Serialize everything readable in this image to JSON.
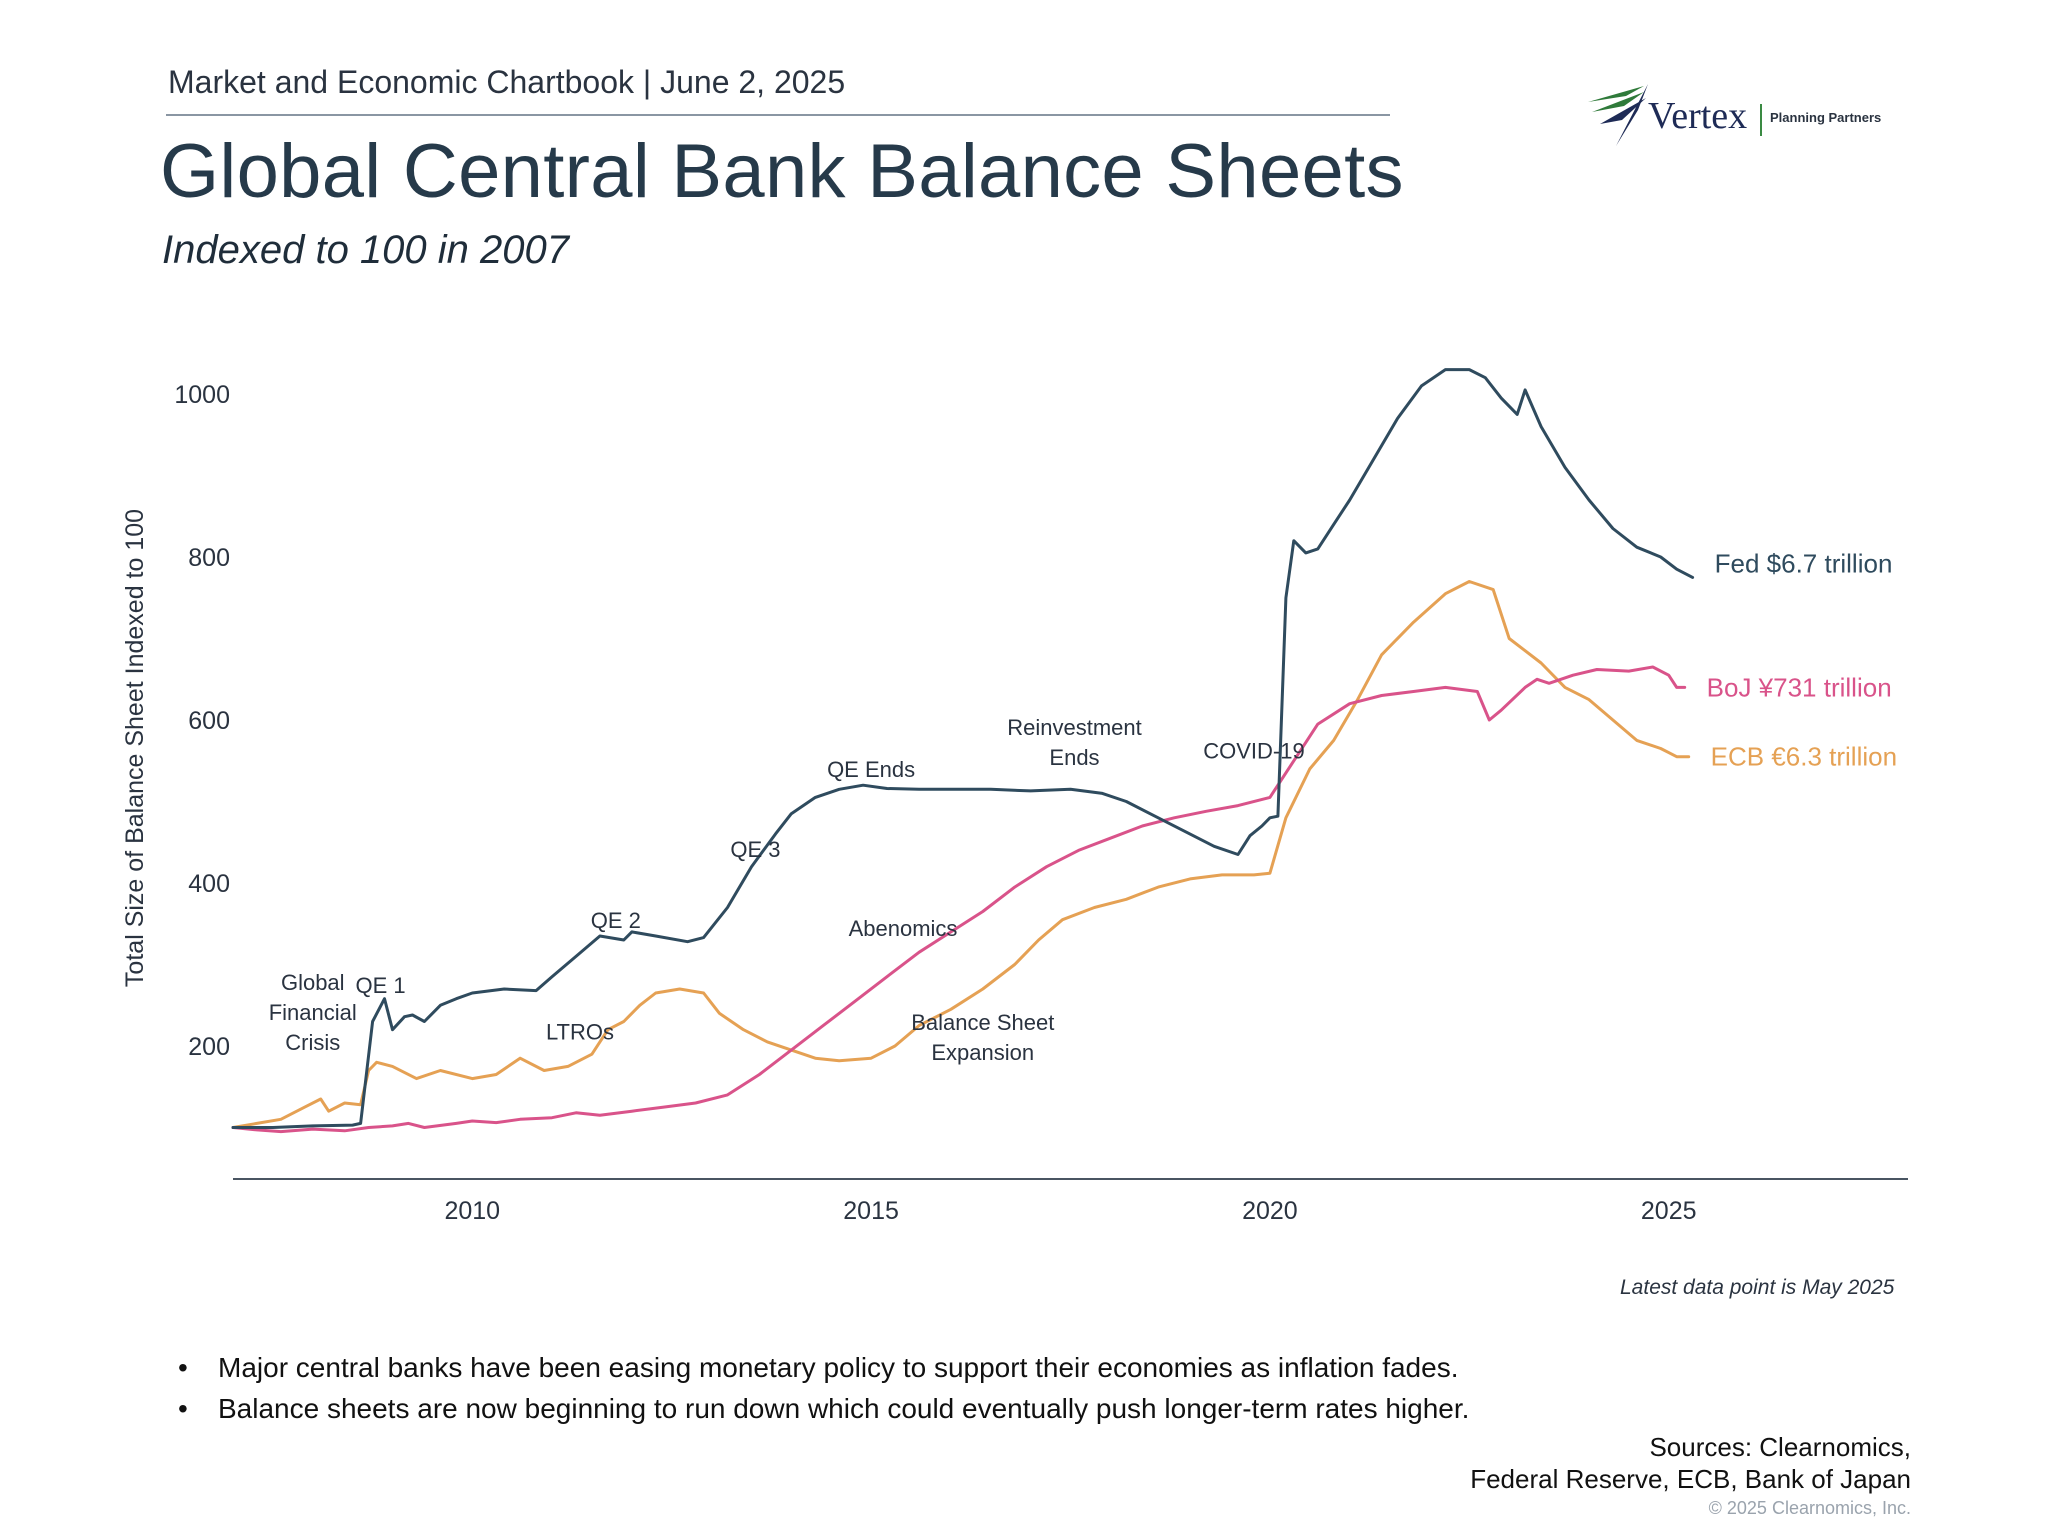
{
  "header": {
    "chartbook": "Market and Economic Chartbook | June 2, 2025",
    "title": "Global Central Bank Balance Sheets",
    "subtitle": "Indexed to 100 in 2007"
  },
  "logo": {
    "name": "Vertex",
    "tagline": "Planning Partners"
  },
  "colors": {
    "fed": "#2f4b5e",
    "boj": "#d9538a",
    "ecb": "#e5a154",
    "axis": "#4a5562",
    "text": "#2a3340"
  },
  "chart_data": {
    "type": "line",
    "title": "Global Central Bank Balance Sheets",
    "subtitle": "Indexed to 100 in 2007",
    "xlabel": "",
    "ylabel": "Total Size of Balance Sheet Indexed to 100",
    "xlim": [
      2007,
      2028
    ],
    "ylim": [
      30,
      1060
    ],
    "xticks": [
      2010,
      2015,
      2020,
      2025
    ],
    "xtick_labels": [
      "2010",
      "2015",
      "2020",
      "2025"
    ],
    "yticks": [
      200,
      400,
      600,
      800,
      1000
    ],
    "ytick_labels": [
      "200",
      "400",
      "600",
      "800",
      "1000"
    ],
    "grid": false,
    "legend": "inline labels at line ends (right)",
    "series": [
      {
        "name": "Fed",
        "label": "Fed $6.7 trillion",
        "color": "#2f4b5e",
        "x": [
          2007,
          2007.5,
          2008,
          2008.5,
          2008.6,
          2008.75,
          2008.9,
          2009,
          2009.15,
          2009.25,
          2009.4,
          2009.6,
          2009.8,
          2010,
          2010.4,
          2010.8,
          2011,
          2011.3,
          2011.6,
          2011.9,
          2012,
          2012.3,
          2012.7,
          2012.9,
          2013.2,
          2013.5,
          2013.8,
          2014,
          2014.3,
          2014.6,
          2014.9,
          2015.2,
          2015.6,
          2016,
          2016.5,
          2017,
          2017.5,
          2017.9,
          2018.2,
          2018.6,
          2019,
          2019.3,
          2019.6,
          2019.75,
          2019.9,
          2020,
          2020.1,
          2020.2,
          2020.3,
          2020.45,
          2020.6,
          2020.8,
          2021,
          2021.3,
          2021.6,
          2021.9,
          2022.2,
          2022.5,
          2022.7,
          2022.9,
          2023.1,
          2023.2,
          2023.4,
          2023.7,
          2024,
          2024.3,
          2024.6,
          2024.9,
          2025.1,
          2025.3
        ],
        "y": [
          100,
          100,
          102,
          103,
          105,
          230,
          258,
          220,
          236,
          238,
          230,
          250,
          258,
          265,
          270,
          268,
          285,
          310,
          335,
          330,
          340,
          335,
          328,
          333,
          370,
          420,
          460,
          485,
          505,
          515,
          520,
          516,
          515,
          515,
          515,
          513,
          515,
          510,
          500,
          480,
          460,
          445,
          435,
          458,
          470,
          480,
          482,
          750,
          820,
          805,
          810,
          840,
          870,
          920,
          970,
          1010,
          1030,
          1030,
          1020,
          995,
          975,
          1005,
          960,
          910,
          870,
          835,
          812,
          800,
          785,
          775
        ]
      },
      {
        "name": "BoJ",
        "label": "BoJ ¥731 trillion",
        "color": "#d9538a",
        "x": [
          2007,
          2007.3,
          2007.6,
          2008,
          2008.4,
          2008.7,
          2009,
          2009.2,
          2009.4,
          2009.8,
          2010,
          2010.3,
          2010.6,
          2011,
          2011.3,
          2011.6,
          2012,
          2012.4,
          2012.8,
          2013.2,
          2013.6,
          2014,
          2014.4,
          2014.8,
          2015.2,
          2015.6,
          2016,
          2016.4,
          2016.8,
          2017.2,
          2017.6,
          2018,
          2018.4,
          2018.8,
          2019.2,
          2019.6,
          2020,
          2020.3,
          2020.6,
          2021,
          2021.4,
          2021.8,
          2022.2,
          2022.6,
          2022.75,
          2022.9,
          2023.2,
          2023.35,
          2023.5,
          2023.8,
          2024.1,
          2024.5,
          2024.8,
          2025,
          2025.1,
          2025.2
        ],
        "y": [
          100,
          97,
          95,
          98,
          96,
          100,
          102,
          105,
          100,
          105,
          108,
          106,
          110,
          112,
          118,
          115,
          120,
          125,
          130,
          140,
          165,
          195,
          225,
          255,
          285,
          315,
          340,
          365,
          395,
          420,
          440,
          455,
          470,
          480,
          488,
          495,
          505,
          550,
          595,
          620,
          630,
          635,
          640,
          635,
          600,
          612,
          640,
          650,
          645,
          655,
          662,
          660,
          665,
          655,
          640,
          640
        ]
      },
      {
        "name": "ECB",
        "label": "ECB €6.3 trillion",
        "color": "#e5a154",
        "x": [
          2007,
          2007.3,
          2007.6,
          2007.9,
          2008.1,
          2008.2,
          2008.4,
          2008.6,
          2008.7,
          2008.8,
          2009,
          2009.3,
          2009.6,
          2010,
          2010.3,
          2010.6,
          2010.9,
          2011.2,
          2011.5,
          2011.7,
          2011.9,
          2012.1,
          2012.3,
          2012.6,
          2012.9,
          2013.1,
          2013.4,
          2013.7,
          2014,
          2014.3,
          2014.6,
          2015,
          2015.3,
          2015.6,
          2016,
          2016.4,
          2016.8,
          2017.1,
          2017.4,
          2017.8,
          2018.2,
          2018.6,
          2019,
          2019.4,
          2019.8,
          2020,
          2020.2,
          2020.5,
          2020.8,
          2021.1,
          2021.4,
          2021.8,
          2022.2,
          2022.5,
          2022.8,
          2023,
          2023.2,
          2023.4,
          2023.7,
          2024,
          2024.3,
          2024.6,
          2024.9,
          2025,
          2025.1,
          2025.25
        ],
        "y": [
          100,
          105,
          110,
          125,
          135,
          120,
          130,
          128,
          170,
          180,
          175,
          160,
          170,
          160,
          165,
          185,
          170,
          175,
          190,
          220,
          230,
          250,
          265,
          270,
          265,
          240,
          220,
          205,
          195,
          185,
          182,
          185,
          200,
          225,
          245,
          270,
          300,
          330,
          355,
          370,
          380,
          395,
          405,
          410,
          410,
          412,
          480,
          540,
          575,
          625,
          680,
          720,
          755,
          770,
          760,
          700,
          685,
          670,
          640,
          625,
          600,
          575,
          565,
          560,
          555,
          555
        ]
      }
    ],
    "annotations": [
      {
        "name": "global-financial-crisis",
        "lines": [
          "Global",
          "Financial",
          "Crisis"
        ],
        "x": 2008.0,
        "y": 195
      },
      {
        "name": "qe1",
        "lines": [
          "QE 1"
        ],
        "x": 2008.85,
        "y": 265
      },
      {
        "name": "qe2",
        "lines": [
          "QE 2"
        ],
        "x": 2011.8,
        "y": 345
      },
      {
        "name": "ltros",
        "lines": [
          "LTROs"
        ],
        "x": 2011.35,
        "y": 208
      },
      {
        "name": "qe3",
        "lines": [
          "QE 3"
        ],
        "x": 2013.55,
        "y": 432
      },
      {
        "name": "qe-ends",
        "lines": [
          "QE Ends"
        ],
        "x": 2015.0,
        "y": 530
      },
      {
        "name": "abenomics",
        "lines": [
          "Abenomics"
        ],
        "x": 2015.4,
        "y": 335
      },
      {
        "name": "reinvestment-ends",
        "lines": [
          "Reinvestment",
          "Ends"
        ],
        "x": 2017.55,
        "y": 545
      },
      {
        "name": "covid-19",
        "lines": [
          "COVID-19"
        ],
        "x": 2019.8,
        "y": 553
      },
      {
        "name": "balance-sheet-expansion",
        "lines": [
          "Balance Sheet",
          "Expansion"
        ],
        "x": 2016.4,
        "y": 183
      }
    ],
    "latest_note": "Latest data point is May 2025"
  },
  "bullets": [
    "Major central banks have been easing monetary policy to support their economies as inflation fades.",
    "Balance sheets are now beginning to run down which could eventually push longer-term rates higher."
  ],
  "sources": {
    "line1": "Sources: Clearnomics,",
    "line2": "Federal Reserve, ECB, Bank of Japan",
    "copyright": "© 2025 Clearnomics, Inc."
  }
}
